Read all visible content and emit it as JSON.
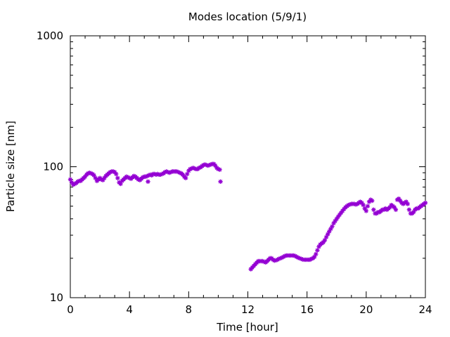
{
  "chart_data": {
    "type": "scatter",
    "title": "Modes location (5/9/1)",
    "xlabel": "Time [hour]",
    "ylabel": "Particle size [nm]",
    "xlim": [
      0,
      24
    ],
    "ylim": [
      10,
      1000
    ],
    "y_scale": "log",
    "x_ticks": [
      0,
      4,
      8,
      12,
      16,
      20,
      24
    ],
    "x_tick_labels": [
      "0",
      "4",
      "8",
      "12",
      "16",
      "20",
      "24"
    ],
    "y_ticks": [
      10,
      100,
      1000
    ],
    "y_tick_labels": [
      "10",
      "100",
      "1000"
    ],
    "grid": false,
    "legend": "none",
    "marker": "asterisk",
    "marker_color": "#9400d3",
    "series": [
      {
        "points": [
          [
            0.0,
            80
          ],
          [
            0.1,
            76
          ],
          [
            0.2,
            73
          ],
          [
            0.3,
            74
          ],
          [
            0.4,
            75
          ],
          [
            0.5,
            77
          ],
          [
            0.6,
            78
          ],
          [
            0.7,
            78
          ],
          [
            0.8,
            80
          ],
          [
            0.9,
            82
          ],
          [
            1.0,
            84
          ],
          [
            1.1,
            87
          ],
          [
            1.2,
            89
          ],
          [
            1.3,
            90
          ],
          [
            1.4,
            89
          ],
          [
            1.5,
            88
          ],
          [
            1.6,
            86
          ],
          [
            1.7,
            82
          ],
          [
            1.8,
            78
          ],
          [
            1.9,
            80
          ],
          [
            2.0,
            82
          ],
          [
            2.1,
            80
          ],
          [
            2.2,
            79
          ],
          [
            2.3,
            82
          ],
          [
            2.4,
            85
          ],
          [
            2.5,
            87
          ],
          [
            2.6,
            89
          ],
          [
            2.7,
            91
          ],
          [
            2.8,
            92
          ],
          [
            2.9,
            92
          ],
          [
            3.0,
            91
          ],
          [
            3.1,
            88
          ],
          [
            3.2,
            82
          ],
          [
            3.3,
            76
          ],
          [
            3.4,
            74
          ],
          [
            3.5,
            78
          ],
          [
            3.6,
            80
          ],
          [
            3.7,
            82
          ],
          [
            3.8,
            84
          ],
          [
            3.9,
            83
          ],
          [
            4.0,
            82
          ],
          [
            4.1,
            81
          ],
          [
            4.2,
            83
          ],
          [
            4.3,
            85
          ],
          [
            4.4,
            84
          ],
          [
            4.5,
            82
          ],
          [
            4.6,
            80
          ],
          [
            4.7,
            79
          ],
          [
            4.8,
            81
          ],
          [
            4.9,
            83
          ],
          [
            5.0,
            84
          ],
          [
            5.1,
            84
          ],
          [
            5.2,
            85
          ],
          [
            5.25,
            77
          ],
          [
            5.3,
            86
          ],
          [
            5.4,
            87
          ],
          [
            5.5,
            86
          ],
          [
            5.6,
            88
          ],
          [
            5.7,
            88
          ],
          [
            5.8,
            87
          ],
          [
            5.9,
            88
          ],
          [
            6.0,
            87
          ],
          [
            6.1,
            87
          ],
          [
            6.2,
            88
          ],
          [
            6.3,
            89
          ],
          [
            6.4,
            91
          ],
          [
            6.5,
            92
          ],
          [
            6.6,
            91
          ],
          [
            6.7,
            90
          ],
          [
            6.8,
            91
          ],
          [
            6.9,
            92
          ],
          [
            7.0,
            92
          ],
          [
            7.1,
            92
          ],
          [
            7.2,
            92
          ],
          [
            7.3,
            91
          ],
          [
            7.4,
            90
          ],
          [
            7.5,
            89
          ],
          [
            7.6,
            87
          ],
          [
            7.7,
            84
          ],
          [
            7.8,
            82
          ],
          [
            7.9,
            88
          ],
          [
            8.0,
            93
          ],
          [
            8.1,
            96
          ],
          [
            8.2,
            97
          ],
          [
            8.3,
            98
          ],
          [
            8.4,
            97
          ],
          [
            8.5,
            96
          ],
          [
            8.6,
            96
          ],
          [
            8.7,
            98
          ],
          [
            8.8,
            99
          ],
          [
            8.9,
            101
          ],
          [
            9.0,
            103
          ],
          [
            9.1,
            104
          ],
          [
            9.2,
            103
          ],
          [
            9.3,
            102
          ],
          [
            9.4,
            103
          ],
          [
            9.5,
            104
          ],
          [
            9.6,
            105
          ],
          [
            9.7,
            105
          ],
          [
            9.8,
            102
          ],
          [
            9.9,
            98
          ],
          [
            10.0,
            96
          ],
          [
            10.1,
            95
          ],
          [
            10.15,
            77
          ],
          [
            12.2,
            16.5
          ],
          [
            12.3,
            17
          ],
          [
            12.4,
            17.5
          ],
          [
            12.5,
            18
          ],
          [
            12.6,
            18.5
          ],
          [
            12.7,
            19
          ],
          [
            12.8,
            19
          ],
          [
            12.9,
            19
          ],
          [
            13.0,
            19
          ],
          [
            13.1,
            18.8
          ],
          [
            13.2,
            18.6
          ],
          [
            13.3,
            19
          ],
          [
            13.4,
            19.5
          ],
          [
            13.5,
            20
          ],
          [
            13.6,
            20
          ],
          [
            13.7,
            19.5
          ],
          [
            13.8,
            19.2
          ],
          [
            13.9,
            19.3
          ],
          [
            14.0,
            19.5
          ],
          [
            14.1,
            19.8
          ],
          [
            14.2,
            20
          ],
          [
            14.3,
            20.2
          ],
          [
            14.4,
            20.5
          ],
          [
            14.5,
            20.8
          ],
          [
            14.6,
            21
          ],
          [
            14.7,
            21
          ],
          [
            14.8,
            21
          ],
          [
            14.9,
            21
          ],
          [
            15.0,
            21
          ],
          [
            15.1,
            21
          ],
          [
            15.2,
            20.8
          ],
          [
            15.3,
            20.5
          ],
          [
            15.4,
            20.2
          ],
          [
            15.5,
            20
          ],
          [
            15.6,
            19.8
          ],
          [
            15.7,
            19.6
          ],
          [
            15.8,
            19.5
          ],
          [
            15.9,
            19.5
          ],
          [
            16.0,
            19.5
          ],
          [
            16.1,
            19.5
          ],
          [
            16.2,
            19.5
          ],
          [
            16.3,
            19.8
          ],
          [
            16.4,
            20
          ],
          [
            16.5,
            20.5
          ],
          [
            16.6,
            21.5
          ],
          [
            16.7,
            23
          ],
          [
            16.8,
            24.5
          ],
          [
            16.9,
            25.5
          ],
          [
            17.0,
            26
          ],
          [
            17.1,
            26.5
          ],
          [
            17.2,
            27.5
          ],
          [
            17.3,
            29
          ],
          [
            17.4,
            30.5
          ],
          [
            17.5,
            32
          ],
          [
            17.6,
            33.5
          ],
          [
            17.7,
            35
          ],
          [
            17.8,
            37
          ],
          [
            17.9,
            38.5
          ],
          [
            18.0,
            40
          ],
          [
            18.1,
            41.5
          ],
          [
            18.2,
            43
          ],
          [
            18.3,
            44.5
          ],
          [
            18.4,
            46
          ],
          [
            18.5,
            47.5
          ],
          [
            18.6,
            49
          ],
          [
            18.7,
            50
          ],
          [
            18.8,
            51
          ],
          [
            18.9,
            51.5
          ],
          [
            19.0,
            52
          ],
          [
            19.1,
            52
          ],
          [
            19.2,
            52
          ],
          [
            19.3,
            51.5
          ],
          [
            19.4,
            52
          ],
          [
            19.5,
            53
          ],
          [
            19.6,
            54
          ],
          [
            19.7,
            53
          ],
          [
            19.8,
            51
          ],
          [
            19.9,
            48
          ],
          [
            20.0,
            46
          ],
          [
            20.1,
            50
          ],
          [
            20.2,
            54
          ],
          [
            20.3,
            56
          ],
          [
            20.4,
            55
          ],
          [
            20.5,
            47
          ],
          [
            20.6,
            44
          ],
          [
            20.7,
            44
          ],
          [
            20.8,
            45
          ],
          [
            20.9,
            45
          ],
          [
            21.0,
            46
          ],
          [
            21.1,
            47
          ],
          [
            21.2,
            47
          ],
          [
            21.3,
            48
          ],
          [
            21.4,
            47
          ],
          [
            21.5,
            48
          ],
          [
            21.6,
            49
          ],
          [
            21.7,
            51
          ],
          [
            21.8,
            50
          ],
          [
            21.9,
            49
          ],
          [
            22.0,
            47
          ],
          [
            22.1,
            56
          ],
          [
            22.2,
            57
          ],
          [
            22.3,
            55
          ],
          [
            22.4,
            53
          ],
          [
            22.5,
            52
          ],
          [
            22.6,
            53
          ],
          [
            22.7,
            54
          ],
          [
            22.8,
            52
          ],
          [
            22.9,
            47
          ],
          [
            23.0,
            44
          ],
          [
            23.1,
            44
          ],
          [
            23.2,
            45
          ],
          [
            23.3,
            47
          ],
          [
            23.4,
            48
          ],
          [
            23.5,
            48
          ],
          [
            23.6,
            49
          ],
          [
            23.7,
            50
          ],
          [
            23.8,
            51
          ],
          [
            23.9,
            52
          ],
          [
            24.0,
            53
          ]
        ]
      }
    ]
  }
}
